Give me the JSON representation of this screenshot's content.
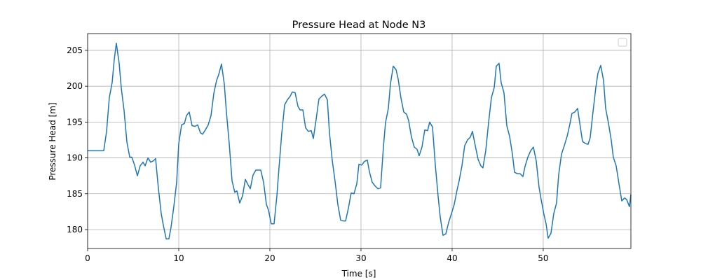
{
  "chart_data": {
    "type": "line",
    "title": "Pressure Head at Node N3",
    "xlabel": "Time [s]",
    "ylabel": "Pressure Head [m]",
    "xlim": [
      0,
      59.62
    ],
    "ylim": [
      177.36,
      207.34
    ],
    "xticks": [
      0,
      10,
      20,
      30,
      40,
      50
    ],
    "yticks": [
      180,
      185,
      190,
      195,
      200,
      205
    ],
    "grid": true,
    "legend": "upper right",
    "series": [
      {
        "color": "#1f77b4",
        "x": [
          0,
          1.77,
          2.08,
          2.38,
          2.69,
          2.92,
          3.15,
          3.46,
          3.69,
          4.0,
          4.31,
          4.62,
          4.85,
          5.15,
          5.46,
          5.77,
          6.08,
          6.31,
          6.62,
          6.92,
          7.23,
          7.46,
          7.77,
          8.08,
          8.31,
          8.62,
          8.92,
          9.15,
          9.46,
          9.77,
          10.0,
          10.31,
          10.62,
          10.85,
          11.15,
          11.46,
          11.77,
          12.08,
          12.38,
          12.62,
          12.92,
          13.23,
          13.54,
          13.85,
          14.15,
          14.38,
          14.69,
          15.0,
          15.23,
          15.54,
          15.85,
          16.15,
          16.38,
          16.69,
          17.0,
          17.31,
          17.54,
          17.85,
          18.15,
          18.46,
          19.0,
          19.31,
          19.62,
          19.85,
          20.15,
          20.46,
          20.77,
          21.0,
          21.31,
          21.62,
          21.92,
          22.23,
          22.46,
          22.77,
          23.08,
          23.31,
          23.62,
          23.92,
          24.23,
          24.54,
          24.77,
          25.08,
          25.38,
          25.69,
          26.0,
          26.31,
          26.54,
          26.85,
          27.15,
          27.46,
          27.77,
          28.08,
          28.31,
          28.62,
          28.92,
          29.23,
          29.54,
          29.77,
          30.08,
          30.38,
          30.69,
          30.92,
          31.23,
          31.54,
          31.85,
          32.15,
          32.46,
          32.69,
          33.0,
          33.23,
          33.54,
          33.85,
          34.08,
          34.38,
          34.69,
          35.0,
          35.23,
          35.54,
          35.85,
          36.15,
          36.38,
          36.69,
          37.0,
          37.31,
          37.54,
          37.85,
          38.15,
          38.46,
          38.69,
          39.0,
          39.31,
          39.62,
          39.92,
          40.23,
          40.54,
          40.77,
          41.08,
          41.38,
          41.69,
          42.0,
          42.23,
          42.54,
          42.85,
          43.15,
          43.38,
          43.69,
          44.0,
          44.31,
          44.62,
          44.85,
          45.15,
          45.38,
          45.69,
          46.0,
          46.31,
          46.62,
          46.85,
          47.15,
          47.46,
          47.77,
          48.0,
          48.31,
          48.62,
          48.92,
          49.23,
          49.54,
          49.77,
          50.08,
          50.31,
          50.54,
          50.85,
          51.15,
          51.46,
          51.69,
          52.0,
          52.31,
          52.62,
          52.92,
          53.15,
          53.46,
          53.77,
          54.0,
          54.31,
          54.62,
          54.92,
          55.15,
          55.46,
          55.77,
          56.0,
          56.31,
          56.62,
          56.85,
          57.15,
          57.46,
          57.69,
          58.0,
          58.31,
          58.62,
          58.92,
          59.15,
          59.46,
          59.62
        ],
        "values": [
          191.0,
          191.0,
          193.7,
          198.4,
          200.5,
          203.7,
          206.0,
          203.2,
          199.8,
          196.6,
          192.2,
          190.1,
          190.1,
          189.0,
          187.5,
          188.9,
          189.4,
          188.9,
          190.0,
          189.4,
          189.6,
          189.9,
          185.7,
          182.2,
          180.6,
          178.7,
          178.7,
          180.3,
          183.2,
          186.6,
          192.0,
          194.6,
          194.8,
          195.9,
          196.4,
          194.5,
          194.4,
          194.6,
          193.5,
          193.3,
          193.9,
          194.6,
          195.9,
          199.0,
          200.8,
          201.6,
          203.1,
          200.3,
          196.4,
          192.0,
          186.8,
          185.2,
          185.4,
          183.7,
          184.7,
          187.0,
          186.4,
          185.7,
          187.6,
          188.3,
          188.3,
          186.6,
          183.5,
          182.7,
          180.8,
          180.8,
          184.7,
          188.6,
          193.5,
          197.4,
          198.1,
          198.6,
          199.2,
          199.1,
          197.2,
          196.7,
          196.7,
          194.2,
          193.7,
          193.8,
          192.7,
          195.4,
          198.2,
          198.6,
          198.9,
          198.1,
          193.5,
          189.6,
          186.8,
          183.5,
          181.3,
          181.2,
          181.2,
          183.0,
          185.1,
          185.0,
          186.4,
          189.1,
          189.0,
          189.5,
          189.7,
          188.1,
          186.6,
          186.1,
          185.7,
          185.8,
          191.5,
          194.9,
          196.9,
          200.3,
          202.8,
          202.3,
          201.0,
          198.4,
          196.4,
          196.1,
          195.2,
          192.9,
          191.5,
          191.2,
          190.3,
          191.5,
          193.9,
          193.8,
          195.0,
          194.3,
          189.1,
          184.7,
          181.8,
          179.2,
          179.4,
          181.0,
          182.2,
          183.5,
          185.5,
          186.8,
          188.9,
          191.7,
          192.5,
          192.9,
          193.7,
          191.7,
          189.8,
          188.9,
          188.6,
          191.0,
          194.9,
          198.4,
          199.8,
          202.8,
          203.2,
          200.5,
          199.1,
          194.5,
          193.0,
          190.5,
          188.0,
          187.8,
          187.8,
          187.4,
          188.8,
          190.1,
          191.0,
          191.5,
          189.6,
          185.9,
          184.2,
          182.1,
          180.8,
          178.8,
          179.5,
          182.2,
          183.7,
          187.6,
          190.5,
          191.7,
          193.0,
          194.7,
          196.2,
          196.4,
          196.9,
          194.9,
          192.3,
          192.0,
          191.9,
          192.8,
          196.4,
          199.8,
          201.8,
          202.9,
          200.8,
          196.9,
          194.9,
          192.5,
          190.1,
          188.9,
          186.4,
          184.0,
          184.4,
          184.2,
          183.2,
          184.9
        ]
      }
    ]
  }
}
